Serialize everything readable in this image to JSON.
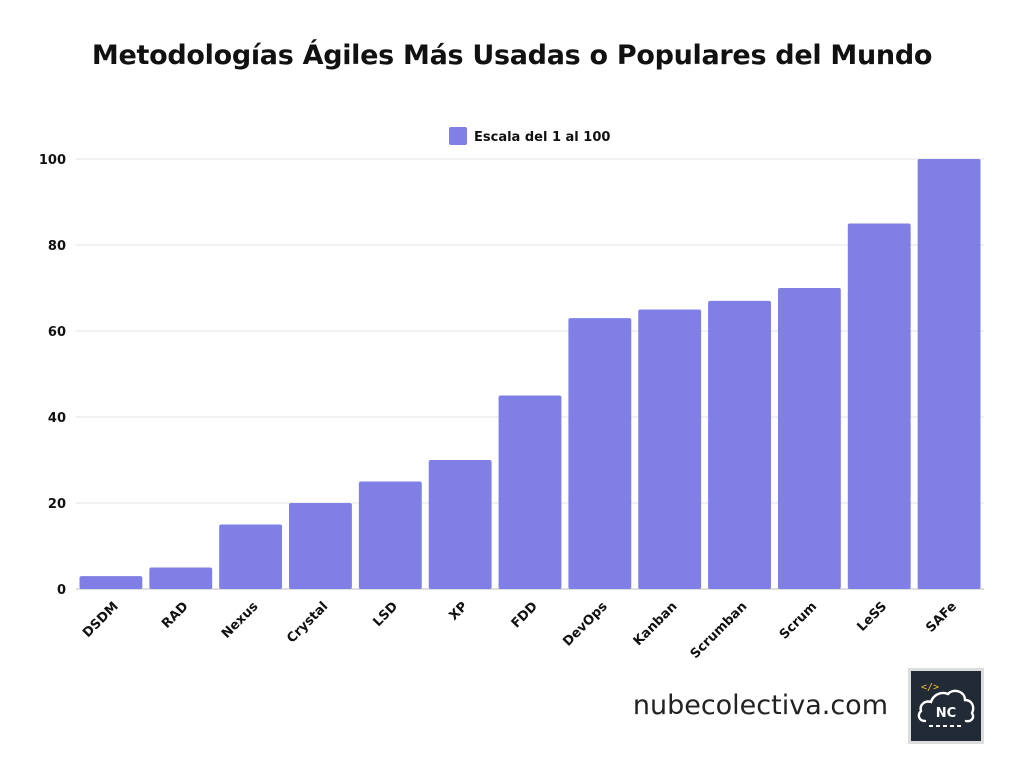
{
  "title": "Metodologías Ágiles Más Usadas o Populares del Mundo",
  "brand": {
    "site": "nubecolectiva.com",
    "logo_text": "NC",
    "logo_code": "</>"
  },
  "colors": {
    "bar": "#7f7fe6",
    "grid": "#e3e3e3",
    "axis": "#bdbdbd",
    "text": "#111111"
  },
  "chart_data": {
    "type": "bar",
    "title": "Metodologías Ágiles Más Usadas o Populares del Mundo",
    "legend_position": "top-center",
    "grid": true,
    "ylim": [
      0,
      100
    ],
    "yticks": [
      0,
      20,
      40,
      60,
      80,
      100
    ],
    "categories": [
      "DSDM",
      "RAD",
      "Nexus",
      "Crystal",
      "LSD",
      "XP",
      "FDD",
      "DevOps",
      "Kanban",
      "Scrumban",
      "Scrum",
      "LeSS",
      "SAFe"
    ],
    "series": [
      {
        "name": "Escala del 1 al 100",
        "values": [
          3,
          5,
          15,
          20,
          25,
          30,
          45,
          63,
          65,
          67,
          70,
          85,
          100
        ]
      }
    ]
  }
}
